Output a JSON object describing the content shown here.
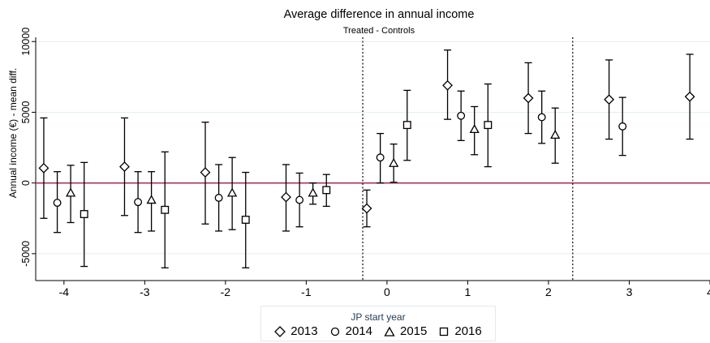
{
  "chart_data": {
    "type": "scatter",
    "title": "Average difference in annual income",
    "subtitle": "Treated - Controls",
    "ylabel": "Annual income (€) - mean diff.",
    "xlabel": "",
    "xlim": [
      -4.35,
      4.0
    ],
    "ylim": [
      -6900,
      10300
    ],
    "x_ticks": [
      -4,
      -3,
      -2,
      -1,
      0,
      1,
      2,
      3,
      4
    ],
    "y_ticks": [
      -5000,
      0,
      5000,
      10000
    ],
    "x_tick_labels": [
      "-4",
      "-3",
      "-2",
      "-1",
      "0",
      "1",
      "2",
      "3",
      "4"
    ],
    "y_tick_labels": [
      "-5000",
      "0",
      "5000",
      "10000"
    ],
    "reference_line": {
      "y": 0,
      "color": "#b0305c"
    },
    "vertical_lines": [
      -0.3,
      2.3
    ],
    "error_bars": true,
    "grid": "horizontal",
    "legend": {
      "title": "JP start year",
      "position": "bottom"
    },
    "series": [
      {
        "name": "2013",
        "marker": "diamond",
        "points": [
          {
            "x": -4.25,
            "y": 1050,
            "lo": -2500,
            "hi": 4600
          },
          {
            "x": -3.25,
            "y": 1150,
            "lo": -2300,
            "hi": 4600
          },
          {
            "x": -2.25,
            "y": 750,
            "lo": -2900,
            "hi": 4300
          },
          {
            "x": -1.25,
            "y": -1000,
            "lo": -3400,
            "hi": 1300
          },
          {
            "x": -0.25,
            "y": -1800,
            "lo": -3100,
            "hi": -500
          },
          {
            "x": 0.75,
            "y": 6900,
            "lo": 4500,
            "hi": 9400
          },
          {
            "x": 1.75,
            "y": 6000,
            "lo": 3500,
            "hi": 8500
          },
          {
            "x": 2.75,
            "y": 5900,
            "lo": 3100,
            "hi": 8700
          },
          {
            "x": 3.75,
            "y": 6100,
            "lo": 3100,
            "hi": 9100
          }
        ]
      },
      {
        "name": "2014",
        "marker": "circle",
        "points": [
          {
            "x": -4.083,
            "y": -1400,
            "lo": -3500,
            "hi": 800
          },
          {
            "x": -3.083,
            "y": -1350,
            "lo": -3500,
            "hi": 800
          },
          {
            "x": -2.083,
            "y": -1050,
            "lo": -3400,
            "hi": 1300
          },
          {
            "x": -1.083,
            "y": -1200,
            "lo": -3100,
            "hi": 700
          },
          {
            "x": -0.083,
            "y": 1800,
            "lo": 0,
            "hi": 3500
          },
          {
            "x": 0.917,
            "y": 4750,
            "lo": 3000,
            "hi": 6500
          },
          {
            "x": 1.917,
            "y": 4650,
            "lo": 2800,
            "hi": 6500
          },
          {
            "x": 2.917,
            "y": 4000,
            "lo": 1950,
            "hi": 6050
          }
        ]
      },
      {
        "name": "2015",
        "marker": "triangle",
        "points": [
          {
            "x": -3.917,
            "y": -700,
            "lo": -2800,
            "hi": 1250
          },
          {
            "x": -2.917,
            "y": -1200,
            "lo": -3400,
            "hi": 800
          },
          {
            "x": -1.917,
            "y": -700,
            "lo": -3300,
            "hi": 1800
          },
          {
            "x": -0.917,
            "y": -700,
            "lo": -1500,
            "hi": 0
          },
          {
            "x": 0.083,
            "y": 1400,
            "lo": 50,
            "hi": 2750
          },
          {
            "x": 1.083,
            "y": 3800,
            "lo": 2000,
            "hi": 5400
          },
          {
            "x": 2.083,
            "y": 3400,
            "lo": 1400,
            "hi": 5300
          }
        ]
      },
      {
        "name": "2016",
        "marker": "square",
        "points": [
          {
            "x": -3.75,
            "y": -2200,
            "lo": -5900,
            "hi": 1450
          },
          {
            "x": -2.75,
            "y": -1900,
            "lo": -6000,
            "hi": 2200
          },
          {
            "x": -1.75,
            "y": -2600,
            "lo": -6000,
            "hi": 750
          },
          {
            "x": -0.75,
            "y": -500,
            "lo": -1650,
            "hi": 600
          },
          {
            "x": 0.25,
            "y": 4100,
            "lo": 1600,
            "hi": 6550
          },
          {
            "x": 1.25,
            "y": 4100,
            "lo": 1150,
            "hi": 7000
          }
        ]
      }
    ]
  }
}
